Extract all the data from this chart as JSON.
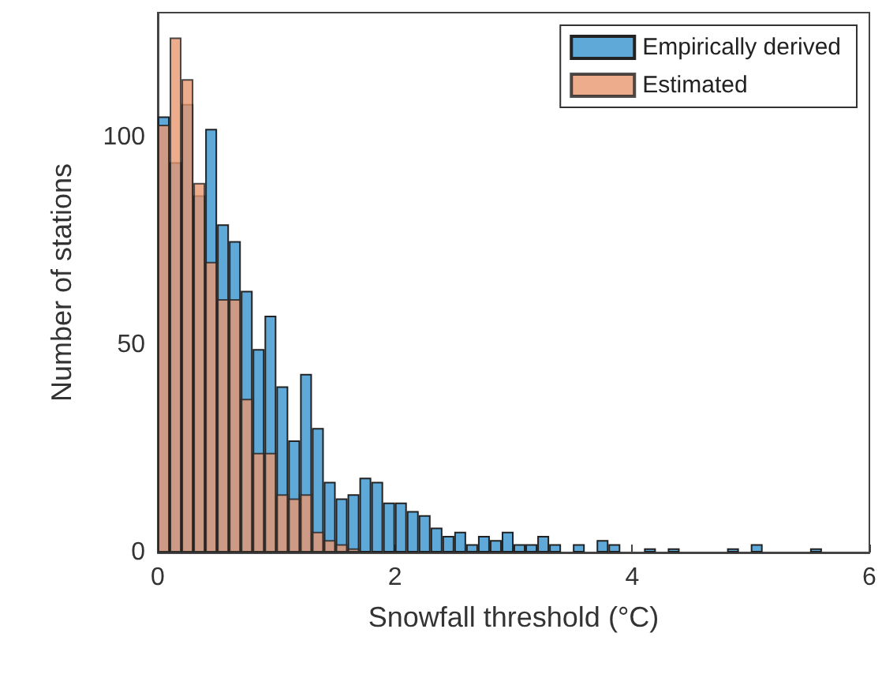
{
  "chart_data": {
    "type": "histogram",
    "xlabel": "Snowfall threshold (°C)",
    "ylabel": "Number of stations",
    "bins": [
      0,
      0.1,
      0.2,
      0.3,
      0.4,
      0.5,
      0.6,
      0.7,
      0.8,
      0.9,
      1.0,
      1.1,
      1.2,
      1.3,
      1.4,
      1.5,
      1.6,
      1.7,
      1.8,
      1.9,
      2.0,
      2.1,
      2.2,
      2.3,
      2.4,
      2.5,
      2.6,
      2.7,
      2.8,
      2.9,
      3.0,
      3.1,
      3.2,
      3.3,
      3.4,
      3.5,
      3.6,
      3.7,
      3.8,
      3.9,
      4.0,
      4.1,
      4.2,
      4.3,
      4.4,
      4.5,
      4.6,
      4.7,
      4.8,
      4.9,
      5.0,
      5.1,
      5.2,
      5.3,
      5.4,
      5.5,
      5.6
    ],
    "series": [
      {
        "name": "Empirically derived",
        "color": "#5fa9d9",
        "values": [
          105,
          94,
          108,
          86,
          102,
          79,
          75,
          63,
          49,
          57,
          40,
          27,
          43,
          30,
          17,
          13,
          14,
          18,
          17,
          12,
          12,
          10,
          9,
          6,
          4,
          5,
          2,
          4,
          3,
          5,
          2,
          2,
          4,
          2,
          0,
          2,
          0,
          3,
          2,
          0,
          0,
          1,
          0,
          1,
          0,
          0,
          0,
          0,
          1,
          0,
          2,
          0,
          0,
          0,
          0,
          1
        ]
      },
      {
        "name": "Estimated",
        "color": "#e8976f",
        "values": [
          103,
          124,
          114,
          89,
          70,
          61,
          61,
          37,
          24,
          24,
          14,
          13,
          14,
          5,
          3,
          2,
          1,
          0,
          0,
          0,
          0,
          0,
          0,
          0,
          0,
          0,
          0,
          0,
          0,
          0,
          0,
          0,
          0,
          0,
          0,
          0,
          0,
          0,
          0,
          0,
          0,
          0,
          0,
          0,
          0,
          0,
          0,
          0,
          0,
          0,
          0,
          0,
          0,
          0,
          0,
          0
        ]
      }
    ],
    "xlim": [
      0,
      6
    ],
    "xticks": [
      0,
      2,
      4,
      6
    ],
    "ylim": [
      0,
      130
    ],
    "yticks": [
      0,
      50,
      100
    ],
    "legend": "top right"
  }
}
